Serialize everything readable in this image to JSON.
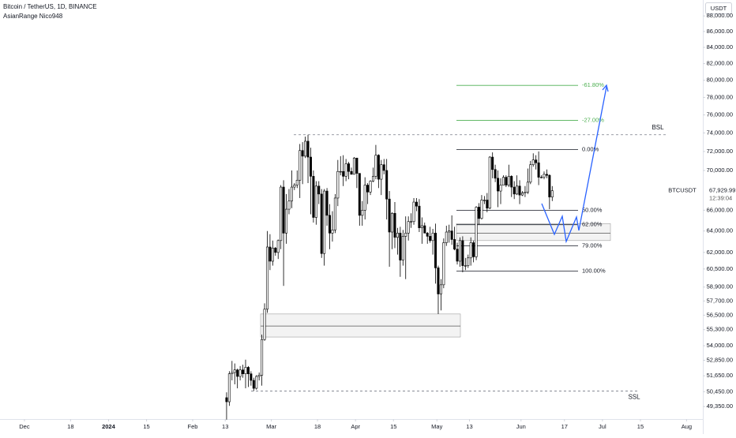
{
  "chart_data": {
    "type": "candlestick",
    "title": "Bitcoin / TetherUS, 1D, BINANCE",
    "subtitle": "AsianRange Nico948",
    "currency": "USDT",
    "symbol": "BTCUSDT",
    "last_price": {
      "value": 67929.99,
      "label": "67,929.99"
    },
    "countdown": "12:39:04",
    "log_scale": true,
    "up_color": "#ffffff",
    "down_color": "#000000",
    "ylim": [
      48500,
      90100
    ],
    "xlim": [
      "2023-11-22",
      "2024-08-07"
    ],
    "yticks": [
      {
        "value": 88000,
        "label": "88,000.00"
      },
      {
        "value": 86000,
        "label": "86,000.00"
      },
      {
        "value": 84000,
        "label": "84,000.00"
      },
      {
        "value": 82000,
        "label": "82,000.00"
      },
      {
        "value": 80000,
        "label": "80,000.00"
      },
      {
        "value": 78000,
        "label": "78,000.00"
      },
      {
        "value": 76000,
        "label": "76,000.00"
      },
      {
        "value": 74000,
        "label": "74,000.00"
      },
      {
        "value": 72000,
        "label": "72,000.00"
      },
      {
        "value": 70000,
        "label": "70,000.00"
      },
      {
        "value": 66000,
        "label": "66,000.00"
      },
      {
        "value": 64000,
        "label": "64,000.00"
      },
      {
        "value": 62000,
        "label": "62,000.00"
      },
      {
        "value": 60500,
        "label": "60,500.00"
      },
      {
        "value": 58900,
        "label": "58,900.00"
      },
      {
        "value": 57700,
        "label": "57,700.00"
      },
      {
        "value": 56500,
        "label": "56,500.00"
      },
      {
        "value": 55300,
        "label": "55,300.00"
      },
      {
        "value": 54000,
        "label": "54,000.00"
      },
      {
        "value": 52850,
        "label": "52,850.00"
      },
      {
        "value": 51650,
        "label": "51,650.00"
      },
      {
        "value": 50450,
        "label": "50,450.00"
      },
      {
        "value": 49350,
        "label": "49,350.00"
      }
    ],
    "xticks": [
      {
        "value": "2023-12-01",
        "label": "Dec"
      },
      {
        "value": "2023-12-18",
        "label": "18"
      },
      {
        "value": "2024-01-01",
        "label": "2024"
      },
      {
        "value": "2024-01-15",
        "label": "15"
      },
      {
        "value": "2024-02-01",
        "label": "Feb"
      },
      {
        "value": "2024-02-13",
        "label": "13"
      },
      {
        "value": "2024-03-01",
        "label": "Mar"
      },
      {
        "value": "2024-03-18",
        "label": "18"
      },
      {
        "value": "2024-04-01",
        "label": "Apr"
      },
      {
        "value": "2024-04-15",
        "label": "15"
      },
      {
        "value": "2024-05-01",
        "label": "May"
      },
      {
        "value": "2024-05-13",
        "label": "13"
      },
      {
        "value": "2024-06-01",
        "label": "Jun"
      },
      {
        "value": "2024-06-17",
        "label": "17"
      },
      {
        "value": "2024-07-01",
        "label": "Jul"
      },
      {
        "value": "2024-07-15",
        "label": "15"
      },
      {
        "value": "2024-08-01",
        "label": "Aug"
      }
    ],
    "fib_levels": [
      {
        "label": "-61.80%",
        "value": 79400,
        "color": "#4caf50"
      },
      {
        "label": "-27.00%",
        "value": 75400,
        "color": "#4caf50"
      },
      {
        "label": "0.00%",
        "value": 72200,
        "color": "#131722"
      },
      {
        "label": "50.00%",
        "value": 66000,
        "color": "#131722"
      },
      {
        "label": "62.00%",
        "value": 64600,
        "color": "#131722"
      },
      {
        "label": "79.00%",
        "value": 62600,
        "color": "#131722"
      },
      {
        "label": "100.00%",
        "value": 60300,
        "color": "#131722"
      }
    ],
    "liquidity": [
      {
        "label": "BSL",
        "value": 73800
      },
      {
        "label": "SSL",
        "value": 50500
      }
    ],
    "zones": [
      {
        "top": 56600,
        "mid": 55600,
        "bottom": 54700
      },
      {
        "top": 64700,
        "mid": 63800,
        "bottom": 63100
      }
    ],
    "x": [
      "2024-02-13",
      "2024-02-14",
      "2024-02-15",
      "2024-02-16",
      "2024-02-17",
      "2024-02-18",
      "2024-02-19",
      "2024-02-20",
      "2024-02-21",
      "2024-02-22",
      "2024-02-23",
      "2024-02-24",
      "2024-02-25",
      "2024-02-26",
      "2024-02-27",
      "2024-02-28",
      "2024-02-29",
      "2024-03-01",
      "2024-03-02",
      "2024-03-03",
      "2024-03-04",
      "2024-03-05",
      "2024-03-06",
      "2024-03-07",
      "2024-03-08",
      "2024-03-09",
      "2024-03-10",
      "2024-03-11",
      "2024-03-12",
      "2024-03-13",
      "2024-03-14",
      "2024-03-15",
      "2024-03-16",
      "2024-03-17",
      "2024-03-18",
      "2024-03-19",
      "2024-03-20",
      "2024-03-21",
      "2024-03-22",
      "2024-03-23",
      "2024-03-24",
      "2024-03-25",
      "2024-03-26",
      "2024-03-27",
      "2024-03-28",
      "2024-03-29",
      "2024-03-30",
      "2024-03-31",
      "2024-04-01",
      "2024-04-02",
      "2024-04-03",
      "2024-04-04",
      "2024-04-05",
      "2024-04-06",
      "2024-04-07",
      "2024-04-08",
      "2024-04-09",
      "2024-04-10",
      "2024-04-11",
      "2024-04-12",
      "2024-04-13",
      "2024-04-14",
      "2024-04-15",
      "2024-04-16",
      "2024-04-17",
      "2024-04-18",
      "2024-04-19",
      "2024-04-20",
      "2024-04-21",
      "2024-04-22",
      "2024-04-23",
      "2024-04-24",
      "2024-04-25",
      "2024-04-26",
      "2024-04-27",
      "2024-04-28",
      "2024-04-29",
      "2024-04-30",
      "2024-05-01",
      "2024-05-02",
      "2024-05-03",
      "2024-05-04",
      "2024-05-05",
      "2024-05-06",
      "2024-05-07",
      "2024-05-08",
      "2024-05-09",
      "2024-05-10",
      "2024-05-11",
      "2024-05-12",
      "2024-05-13",
      "2024-05-14",
      "2024-05-15",
      "2024-05-16",
      "2024-05-17",
      "2024-05-18",
      "2024-05-19",
      "2024-05-20",
      "2024-05-21",
      "2024-05-22",
      "2024-05-23",
      "2024-05-24",
      "2024-05-25",
      "2024-05-26",
      "2024-05-27",
      "2024-05-28",
      "2024-05-29",
      "2024-05-30",
      "2024-05-31",
      "2024-06-01",
      "2024-06-02",
      "2024-06-03",
      "2024-06-04",
      "2024-06-05",
      "2024-06-06",
      "2024-06-07",
      "2024-06-08",
      "2024-06-09",
      "2024-06-10",
      "2024-06-11",
      "2024-06-12"
    ],
    "candles": [
      [
        50000,
        50400,
        48400,
        49700
      ],
      [
        49700,
        52000,
        49400,
        51800
      ],
      [
        51800,
        52800,
        51300,
        51900
      ],
      [
        51900,
        52600,
        51000,
        52100
      ],
      [
        52100,
        52200,
        50700,
        51600
      ],
      [
        51600,
        52400,
        51300,
        52100
      ],
      [
        52100,
        52500,
        51500,
        51800
      ],
      [
        51800,
        52900,
        50700,
        52300
      ],
      [
        52300,
        52400,
        50800,
        51800
      ],
      [
        51800,
        52000,
        50900,
        51300
      ],
      [
        51300,
        51500,
        50500,
        50700
      ],
      [
        50700,
        51700,
        50600,
        51600
      ],
      [
        51600,
        51900,
        51300,
        51700
      ],
      [
        51700,
        54900,
        50900,
        54500
      ],
      [
        54500,
        57500,
        54400,
        57000
      ],
      [
        57000,
        64000,
        56700,
        62500
      ],
      [
        62500,
        63700,
        60400,
        61200
      ],
      [
        61200,
        63100,
        60800,
        62400
      ],
      [
        62400,
        62500,
        61700,
        62000
      ],
      [
        62000,
        63200,
        61400,
        63100
      ],
      [
        63100,
        68500,
        62300,
        68300
      ],
      [
        68300,
        69000,
        59000,
        63800
      ],
      [
        63800,
        67600,
        62800,
        66100
      ],
      [
        66100,
        68100,
        65600,
        66900
      ],
      [
        66900,
        70000,
        66200,
        68300
      ],
      [
        68300,
        68700,
        68000,
        68500
      ],
      [
        68500,
        70000,
        68200,
        69000
      ],
      [
        69000,
        72800,
        67200,
        72100
      ],
      [
        72100,
        73000,
        68600,
        71500
      ],
      [
        71500,
        73600,
        71300,
        73100
      ],
      [
        73100,
        73800,
        68700,
        71400
      ],
      [
        71400,
        72400,
        65600,
        69400
      ],
      [
        69400,
        70000,
        64800,
        65300
      ],
      [
        65300,
        68900,
        64600,
        68400
      ],
      [
        68400,
        68900,
        66600,
        67600
      ],
      [
        67600,
        68100,
        61500,
        61900
      ],
      [
        61900,
        68100,
        60800,
        67900
      ],
      [
        67900,
        68200,
        64500,
        65500
      ],
      [
        65500,
        66600,
        62300,
        63800
      ],
      [
        63800,
        65900,
        63000,
        64100
      ],
      [
        64100,
        67600,
        63800,
        67200
      ],
      [
        67200,
        71100,
        66400,
        69900
      ],
      [
        69900,
        71500,
        69500,
        69900
      ],
      [
        69900,
        71600,
        68400,
        69400
      ],
      [
        69400,
        71200,
        68900,
        70700
      ],
      [
        70700,
        70900,
        69100,
        69900
      ],
      [
        69900,
        70300,
        69600,
        69600
      ],
      [
        69600,
        71400,
        69600,
        71300
      ],
      [
        71300,
        71300,
        68200,
        69700
      ],
      [
        69700,
        69700,
        64500,
        65500
      ],
      [
        65500,
        66900,
        64500,
        66000
      ],
      [
        66000,
        69300,
        65100,
        68500
      ],
      [
        68500,
        68700,
        66600,
        67800
      ],
      [
        67800,
        69000,
        67500,
        68900
      ],
      [
        68900,
        70300,
        68800,
        69400
      ],
      [
        69400,
        72700,
        69100,
        71600
      ],
      [
        71600,
        71700,
        68200,
        69100
      ],
      [
        69100,
        71100,
        67500,
        70600
      ],
      [
        70600,
        71200,
        69600,
        70000
      ],
      [
        70000,
        71200,
        65100,
        67100
      ],
      [
        67100,
        67900,
        60700,
        63900
      ],
      [
        63900,
        65800,
        62300,
        65700
      ],
      [
        65700,
        66800,
        62400,
        63400
      ],
      [
        63400,
        64300,
        61800,
        63800
      ],
      [
        63800,
        64400,
        59800,
        61300
      ],
      [
        61300,
        64100,
        60800,
        63500
      ],
      [
        63500,
        65400,
        59600,
        63800
      ],
      [
        63800,
        65400,
        63100,
        64900
      ],
      [
        64900,
        65700,
        64300,
        64900
      ],
      [
        64900,
        67200,
        64600,
        66800
      ],
      [
        66800,
        67200,
        65900,
        66400
      ],
      [
        66400,
        67100,
        63900,
        64300
      ],
      [
        64300,
        65300,
        62800,
        64500
      ],
      [
        64500,
        64800,
        63800,
        63800
      ],
      [
        63800,
        63900,
        62800,
        63500
      ],
      [
        63500,
        64400,
        62900,
        63100
      ],
      [
        63100,
        64200,
        61800,
        63800
      ],
      [
        63800,
        64700,
        59200,
        60600
      ],
      [
        60600,
        60800,
        56600,
        58300
      ],
      [
        58300,
        59600,
        56900,
        59100
      ],
      [
        59100,
        63300,
        58800,
        62900
      ],
      [
        62900,
        64500,
        62600,
        63900
      ],
      [
        63900,
        64600,
        62900,
        64000
      ],
      [
        64000,
        65500,
        62700,
        63200
      ],
      [
        63200,
        64400,
        62200,
        62300
      ],
      [
        62300,
        62900,
        60900,
        61200
      ],
      [
        61200,
        63400,
        60700,
        63100
      ],
      [
        63100,
        63500,
        60200,
        60800
      ],
      [
        60800,
        61500,
        60400,
        60800
      ],
      [
        60800,
        61800,
        60600,
        61500
      ],
      [
        61500,
        63400,
        60800,
        62900
      ],
      [
        62900,
        63100,
        61100,
        61600
      ],
      [
        61600,
        66400,
        61300,
        66300
      ],
      [
        66300,
        66700,
        64600,
        65200
      ],
      [
        65200,
        67500,
        65100,
        67000
      ],
      [
        67000,
        67400,
        66600,
        67000
      ],
      [
        67000,
        67700,
        65800,
        66200
      ],
      [
        66200,
        71500,
        66100,
        71400
      ],
      [
        71400,
        71900,
        69200,
        70100
      ],
      [
        70100,
        70600,
        68800,
        69200
      ],
      [
        69200,
        70000,
        66300,
        67900
      ],
      [
        67900,
        69200,
        66600,
        68500
      ],
      [
        68500,
        69500,
        68500,
        69300
      ],
      [
        69300,
        69500,
        68300,
        68500
      ],
      [
        68500,
        70600,
        68300,
        69400
      ],
      [
        69400,
        69500,
        67300,
        68300
      ],
      [
        68300,
        68900,
        67100,
        67600
      ],
      [
        67600,
        69500,
        67500,
        68400
      ],
      [
        68400,
        69000,
        66600,
        67500
      ],
      [
        67500,
        67900,
        67400,
        67700
      ],
      [
        67700,
        68400,
        67300,
        67800
      ],
      [
        67800,
        70200,
        67600,
        68800
      ],
      [
        68800,
        71000,
        68600,
        70600
      ],
      [
        70600,
        71800,
        70400,
        71100
      ],
      [
        71100,
        71600,
        70100,
        70800
      ],
      [
        70800,
        72000,
        68500,
        69300
      ],
      [
        69300,
        69500,
        69200,
        69300
      ],
      [
        69300,
        69900,
        69100,
        69600
      ],
      [
        69600,
        70100,
        69200,
        69500
      ],
      [
        69500,
        69600,
        66100,
        67300
      ],
      [
        67300,
        68400,
        66900,
        67929.99
      ]
    ]
  }
}
